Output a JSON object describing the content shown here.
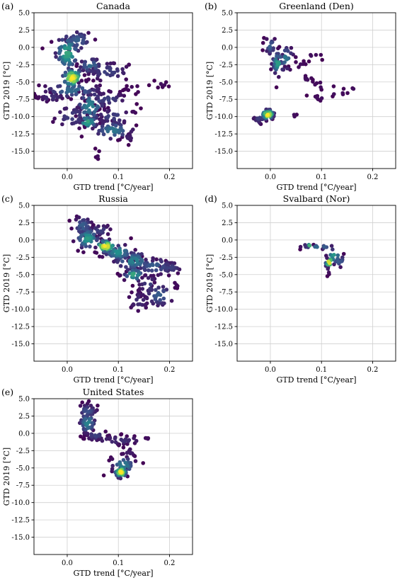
{
  "colors": {
    "low": "#440154",
    "mid": "#21908d",
    "high": "#fde725",
    "grid": "#d0d0d0",
    "axis": "#000000"
  },
  "chart_data": [
    {
      "type": "scatter",
      "panel_letter": "(a)",
      "title": "Canada",
      "xlabel": "GTD trend [°C/year]",
      "ylabel": "GTD 2019 [°C]",
      "xlim": [
        -0.065,
        0.245
      ],
      "ylim": [
        -17.5,
        5.0
      ],
      "xticks": [
        0.0,
        0.1,
        0.2
      ],
      "yticks": [
        5.0,
        2.5,
        0.0,
        -2.5,
        -5.0,
        -7.5,
        -10.0,
        -12.5,
        -15.0
      ],
      "grid": true,
      "clusters": [
        {
          "x": 0.01,
          "y": -4.4,
          "sx": 0.01,
          "sy": 0.7,
          "n": 45,
          "density": 1.0
        },
        {
          "x": 0.0,
          "y": -0.8,
          "sx": 0.012,
          "sy": 1.4,
          "n": 60,
          "density": 0.6
        },
        {
          "x": 0.02,
          "y": 1.0,
          "sx": 0.015,
          "sy": 0.8,
          "n": 35,
          "density": 0.3
        },
        {
          "x": 0.045,
          "y": -2.6,
          "sx": 0.012,
          "sy": 0.6,
          "n": 30,
          "density": 0.35
        },
        {
          "x": 0.08,
          "y": -3.5,
          "sx": 0.025,
          "sy": 0.8,
          "n": 45,
          "density": 0.2
        },
        {
          "x": 0.01,
          "y": -6.2,
          "sx": 0.03,
          "sy": 0.6,
          "n": 60,
          "density": 0.35
        },
        {
          "x": -0.03,
          "y": -7.2,
          "sx": 0.015,
          "sy": 0.4,
          "n": 25,
          "density": 0.15
        },
        {
          "x": 0.045,
          "y": -8.5,
          "sx": 0.015,
          "sy": 1.2,
          "n": 45,
          "density": 0.45
        },
        {
          "x": 0.04,
          "y": -10.8,
          "sx": 0.01,
          "sy": 0.5,
          "n": 25,
          "density": 0.6
        },
        {
          "x": 0.01,
          "y": -10.0,
          "sx": 0.02,
          "sy": 1.0,
          "n": 35,
          "density": 0.2
        },
        {
          "x": 0.08,
          "y": -7.5,
          "sx": 0.02,
          "sy": 0.6,
          "n": 35,
          "density": 0.2
        },
        {
          "x": 0.09,
          "y": -10.0,
          "sx": 0.025,
          "sy": 0.6,
          "n": 35,
          "density": 0.2
        },
        {
          "x": 0.09,
          "y": -12.0,
          "sx": 0.02,
          "sy": 0.7,
          "n": 35,
          "density": 0.4
        },
        {
          "x": 0.12,
          "y": -13.0,
          "sx": 0.01,
          "sy": 0.4,
          "n": 12,
          "density": 0.1
        },
        {
          "x": 0.06,
          "y": -15.5,
          "sx": 0.003,
          "sy": 0.5,
          "n": 6,
          "density": 0.05
        },
        {
          "x": 0.185,
          "y": -5.3,
          "sx": 0.008,
          "sy": 0.3,
          "n": 8,
          "density": 0.05
        },
        {
          "x": 0.13,
          "y": -6.0,
          "sx": 0.01,
          "sy": 0.4,
          "n": 10,
          "density": 0.05
        }
      ]
    },
    {
      "type": "scatter",
      "panel_letter": "(b)",
      "title": "Greenland (Den)",
      "xlabel": "GTD trend [°C/year]",
      "ylabel": "GTD 2019 [°C]",
      "xlim": [
        -0.065,
        0.245
      ],
      "ylim": [
        -17.5,
        5.0
      ],
      "xticks": [
        0.0,
        0.1,
        0.2
      ],
      "yticks": [
        5.0,
        2.5,
        0.0,
        -2.5,
        -5.0,
        -7.5,
        -10.0,
        -12.5,
        -15.0
      ],
      "grid": true,
      "clusters": [
        {
          "x": -0.005,
          "y": -9.7,
          "sx": 0.006,
          "sy": 0.35,
          "n": 40,
          "density": 1.0
        },
        {
          "x": -0.02,
          "y": -10.3,
          "sx": 0.008,
          "sy": 0.4,
          "n": 15,
          "density": 0.2
        },
        {
          "x": 0.015,
          "y": -2.3,
          "sx": 0.006,
          "sy": 0.9,
          "n": 30,
          "density": 0.55
        },
        {
          "x": 0.0,
          "y": 0.2,
          "sx": 0.006,
          "sy": 0.7,
          "n": 18,
          "density": 0.3
        },
        {
          "x": 0.03,
          "y": -1.5,
          "sx": 0.008,
          "sy": 0.9,
          "n": 22,
          "density": 0.4
        },
        {
          "x": 0.055,
          "y": -2.5,
          "sx": 0.01,
          "sy": 0.3,
          "n": 8,
          "density": 0.05
        },
        {
          "x": 0.07,
          "y": -4.8,
          "sx": 0.01,
          "sy": 0.5,
          "n": 8,
          "density": 0.05
        },
        {
          "x": 0.085,
          "y": -1.2,
          "sx": 0.012,
          "sy": 0.2,
          "n": 5,
          "density": 0.05
        },
        {
          "x": 0.1,
          "y": -7.3,
          "sx": 0.012,
          "sy": 0.3,
          "n": 8,
          "density": 0.05
        },
        {
          "x": 0.13,
          "y": -6.5,
          "sx": 0.015,
          "sy": 0.6,
          "n": 6,
          "density": 0.05
        },
        {
          "x": 0.095,
          "y": -5.5,
          "sx": 0.01,
          "sy": 0.4,
          "n": 5,
          "density": 0.05
        },
        {
          "x": 0.165,
          "y": -6.0,
          "sx": 0.004,
          "sy": 0.2,
          "n": 2,
          "density": 0.05
        },
        {
          "x": 0.045,
          "y": -9.8,
          "sx": 0.006,
          "sy": 0.2,
          "n": 3,
          "density": 0.05
        }
      ]
    },
    {
      "type": "scatter",
      "panel_letter": "(c)",
      "title": "Russia",
      "xlabel": "GTD trend [°C/year]",
      "ylabel": "GTD 2019 [°C]",
      "xlim": [
        -0.065,
        0.245
      ],
      "ylim": [
        -17.5,
        5.0
      ],
      "xticks": [
        0.0,
        0.1,
        0.2
      ],
      "yticks": [
        5.0,
        2.5,
        0.0,
        -2.5,
        -5.0,
        -7.5,
        -10.0,
        -12.5,
        -15.0
      ],
      "grid": true,
      "clusters": [
        {
          "x": 0.075,
          "y": -0.9,
          "sx": 0.01,
          "sy": 0.45,
          "n": 45,
          "density": 1.0
        },
        {
          "x": 0.04,
          "y": 0.2,
          "sx": 0.012,
          "sy": 0.8,
          "n": 50,
          "density": 0.55
        },
        {
          "x": 0.03,
          "y": 2.0,
          "sx": 0.01,
          "sy": 0.8,
          "n": 35,
          "density": 0.3
        },
        {
          "x": 0.1,
          "y": -1.8,
          "sx": 0.015,
          "sy": 0.6,
          "n": 50,
          "density": 0.5
        },
        {
          "x": 0.13,
          "y": -3.0,
          "sx": 0.02,
          "sy": 0.7,
          "n": 55,
          "density": 0.45
        },
        {
          "x": 0.13,
          "y": -5.0,
          "sx": 0.01,
          "sy": 0.5,
          "n": 30,
          "density": 0.6
        },
        {
          "x": 0.17,
          "y": -3.8,
          "sx": 0.02,
          "sy": 0.7,
          "n": 40,
          "density": 0.3
        },
        {
          "x": 0.2,
          "y": -4.0,
          "sx": 0.015,
          "sy": 0.5,
          "n": 25,
          "density": 0.2
        },
        {
          "x": 0.18,
          "y": -8.0,
          "sx": 0.015,
          "sy": 0.9,
          "n": 30,
          "density": 0.3
        },
        {
          "x": 0.14,
          "y": -8.8,
          "sx": 0.012,
          "sy": 0.8,
          "n": 25,
          "density": 0.15
        },
        {
          "x": 0.16,
          "y": -6.5,
          "sx": 0.012,
          "sy": 0.8,
          "n": 20,
          "density": 0.2
        },
        {
          "x": 0.065,
          "y": 1.4,
          "sx": 0.012,
          "sy": 0.5,
          "n": 18,
          "density": 0.2
        },
        {
          "x": 0.21,
          "y": -6.5,
          "sx": 0.006,
          "sy": 0.3,
          "n": 6,
          "density": 0.05
        }
      ]
    },
    {
      "type": "scatter",
      "panel_letter": "(d)",
      "title": "Svalbard (Nor)",
      "xlabel": "GTD trend [°C/year]",
      "ylabel": "GTD 2019 [°C]",
      "xlim": [
        -0.065,
        0.245
      ],
      "ylim": [
        -17.5,
        5.0
      ],
      "xticks": [
        0.0,
        0.1,
        0.2
      ],
      "yticks": [
        5.0,
        2.5,
        0.0,
        -2.5,
        -5.0,
        -7.5,
        -10.0,
        -12.5,
        -15.0
      ],
      "grid": true,
      "clusters": [
        {
          "x": 0.115,
          "y": -3.2,
          "sx": 0.004,
          "sy": 0.4,
          "n": 10,
          "density": 1.0
        },
        {
          "x": 0.125,
          "y": -2.3,
          "sx": 0.007,
          "sy": 0.6,
          "n": 14,
          "density": 0.55
        },
        {
          "x": 0.095,
          "y": -1.0,
          "sx": 0.018,
          "sy": 0.15,
          "n": 14,
          "density": 0.35
        },
        {
          "x": 0.135,
          "y": -3.0,
          "sx": 0.006,
          "sy": 0.5,
          "n": 10,
          "density": 0.3
        },
        {
          "x": 0.11,
          "y": -4.3,
          "sx": 0.005,
          "sy": 0.4,
          "n": 5,
          "density": 0.1
        },
        {
          "x": 0.075,
          "y": -0.8,
          "sx": 0.004,
          "sy": 0.1,
          "n": 3,
          "density": 0.7
        }
      ]
    },
    {
      "type": "scatter",
      "panel_letter": "(e)",
      "title": "United States",
      "xlabel": "GTD trend [°C/year]",
      "ylabel": "GTD 2019 [°C]",
      "xlim": [
        -0.065,
        0.245
      ],
      "ylim": [
        -17.5,
        5.0
      ],
      "xticks": [
        0.0,
        0.1,
        0.2
      ],
      "yticks": [
        5.0,
        2.5,
        0.0,
        -2.5,
        -5.0,
        -7.5,
        -10.0,
        -12.5,
        -15.0
      ],
      "grid": true,
      "clusters": [
        {
          "x": 0.105,
          "y": -5.6,
          "sx": 0.006,
          "sy": 0.4,
          "n": 35,
          "density": 1.0
        },
        {
          "x": 0.11,
          "y": -4.6,
          "sx": 0.012,
          "sy": 0.7,
          "n": 35,
          "density": 0.45
        },
        {
          "x": 0.04,
          "y": 1.5,
          "sx": 0.008,
          "sy": 0.8,
          "n": 40,
          "density": 0.45
        },
        {
          "x": 0.04,
          "y": 3.2,
          "sx": 0.01,
          "sy": 0.6,
          "n": 30,
          "density": 0.25
        },
        {
          "x": 0.055,
          "y": -0.3,
          "sx": 0.012,
          "sy": 0.4,
          "n": 25,
          "density": 0.2
        },
        {
          "x": 0.1,
          "y": -1.0,
          "sx": 0.03,
          "sy": 0.35,
          "n": 35,
          "density": 0.15
        },
        {
          "x": 0.12,
          "y": -3.0,
          "sx": 0.008,
          "sy": 0.6,
          "n": 12,
          "density": 0.1
        },
        {
          "x": 0.155,
          "y": -0.8,
          "sx": 0.005,
          "sy": 0.2,
          "n": 4,
          "density": 0.05
        }
      ]
    }
  ]
}
